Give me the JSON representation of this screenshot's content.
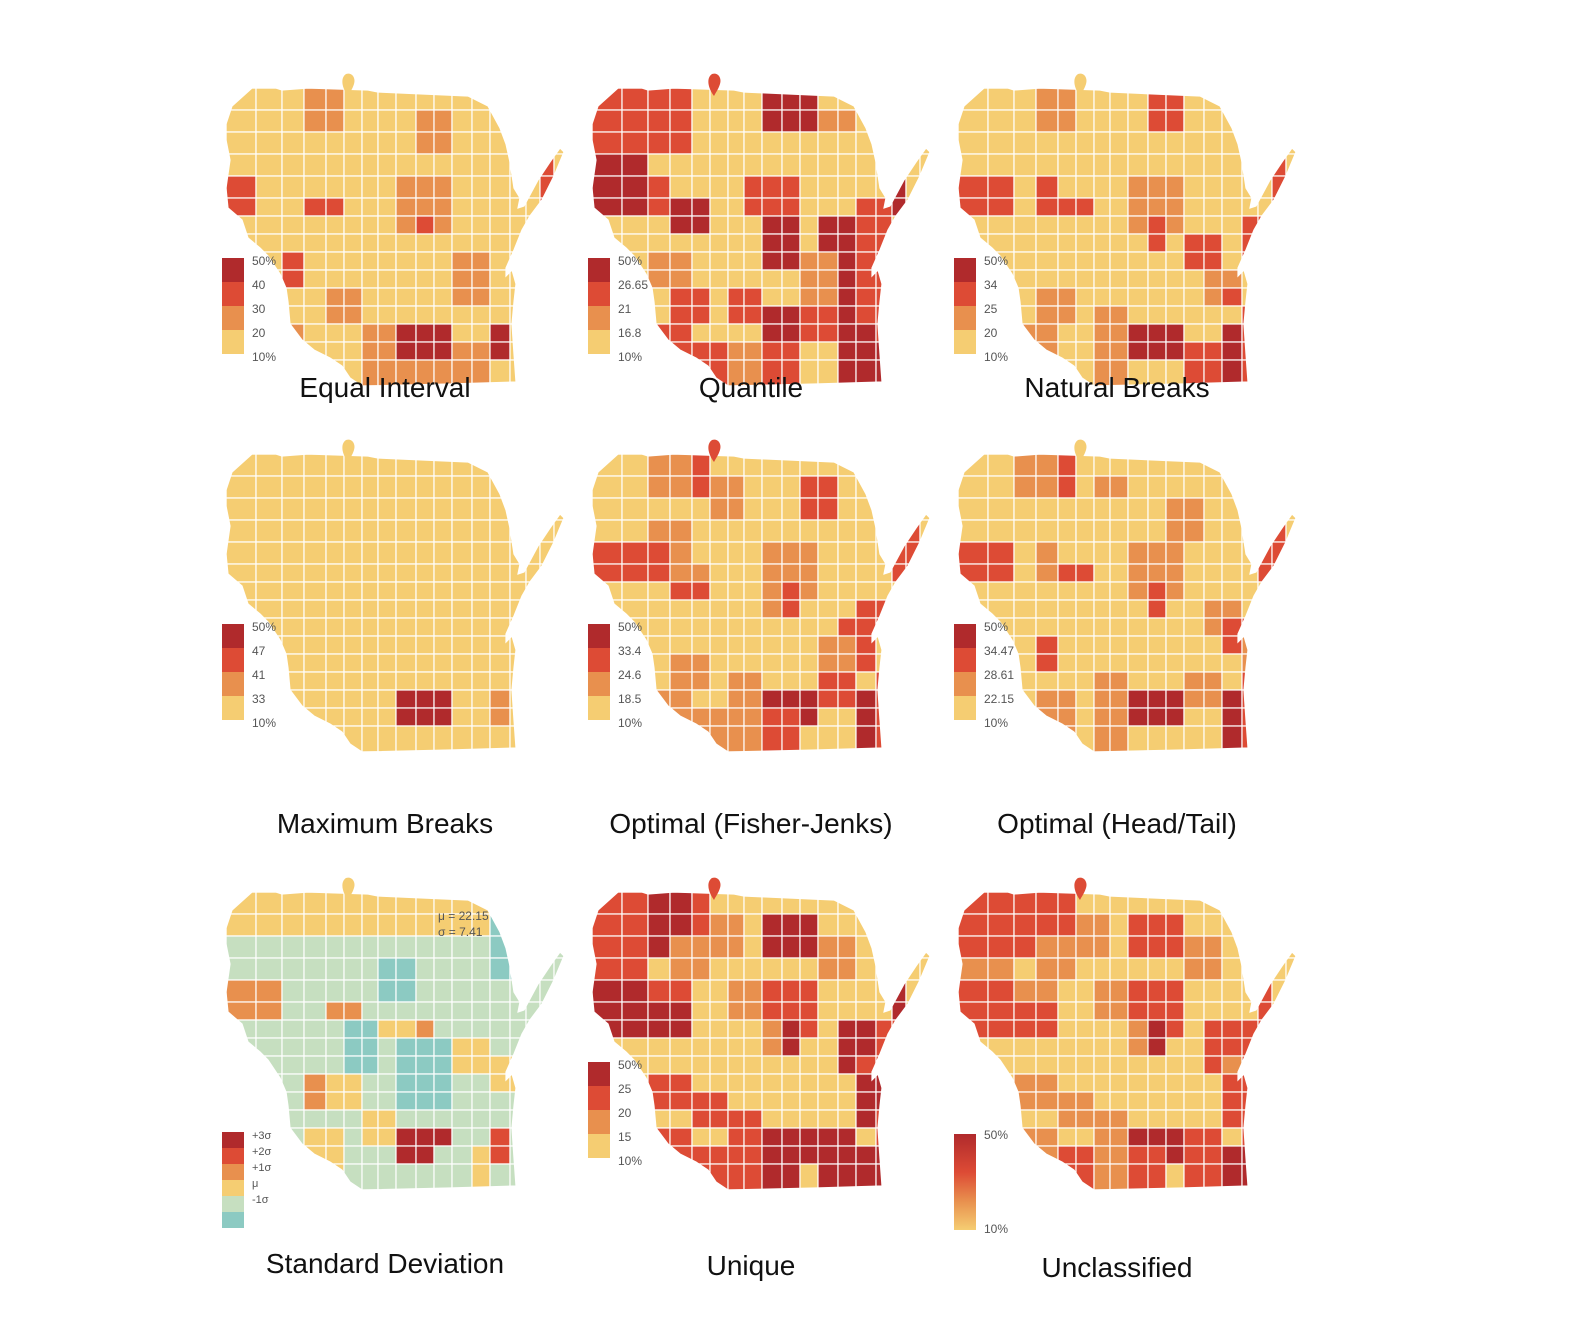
{
  "colors": {
    "c1": "#f5cd72",
    "c2": "#e8904e",
    "c3": "#dd4b35",
    "c4": "#b02a2c",
    "neg1": "#8ccac2",
    "mu": "#c6dfc0",
    "border": "#ffffff"
  },
  "chart_data": {
    "type": "choropleth",
    "panels": [
      {
        "id": "equal_interval",
        "title": "Equal Interval",
        "legend_type": "classes",
        "legend_labels": [
          "50%",
          "40",
          "30",
          "20",
          "10%"
        ]
      },
      {
        "id": "quantile",
        "title": "Quantile",
        "legend_type": "classes",
        "legend_labels": [
          "50%",
          "26.65",
          "21",
          "16.8",
          "10%"
        ]
      },
      {
        "id": "natural_breaks",
        "title": "Natural Breaks",
        "legend_type": "classes",
        "legend_labels": [
          "50%",
          "34",
          "25",
          "20",
          "10%"
        ]
      },
      {
        "id": "maximum_breaks",
        "title": "Maximum Breaks",
        "legend_type": "classes",
        "legend_labels": [
          "50%",
          "47",
          "41",
          "33",
          "10%"
        ]
      },
      {
        "id": "fisher_jenks",
        "title": "Optimal (Fisher-Jenks)",
        "legend_type": "classes",
        "legend_labels": [
          "50%",
          "33.4",
          "24.6",
          "18.5",
          "10%"
        ]
      },
      {
        "id": "head_tail",
        "title": "Optimal (Head/Tail)",
        "legend_type": "classes",
        "legend_labels": [
          "50%",
          "34.47",
          "28.61",
          "22.15",
          "10%"
        ]
      },
      {
        "id": "standard_deviation",
        "title": "Standard Deviation",
        "legend_type": "stddev",
        "legend_labels": [
          "+3σ",
          "+2σ",
          "+1σ",
          "μ",
          "-1σ"
        ],
        "stats": [
          "μ = 22.15",
          "σ = 7.41"
        ]
      },
      {
        "id": "unique",
        "title": "Unique",
        "legend_type": "classes",
        "legend_labels": [
          "50%",
          "25",
          "20",
          "15",
          "10%"
        ]
      },
      {
        "id": "unclassified",
        "title": "Unclassified",
        "legend_type": "gradient",
        "legend_labels": [
          "50%",
          "10%"
        ]
      }
    ]
  }
}
